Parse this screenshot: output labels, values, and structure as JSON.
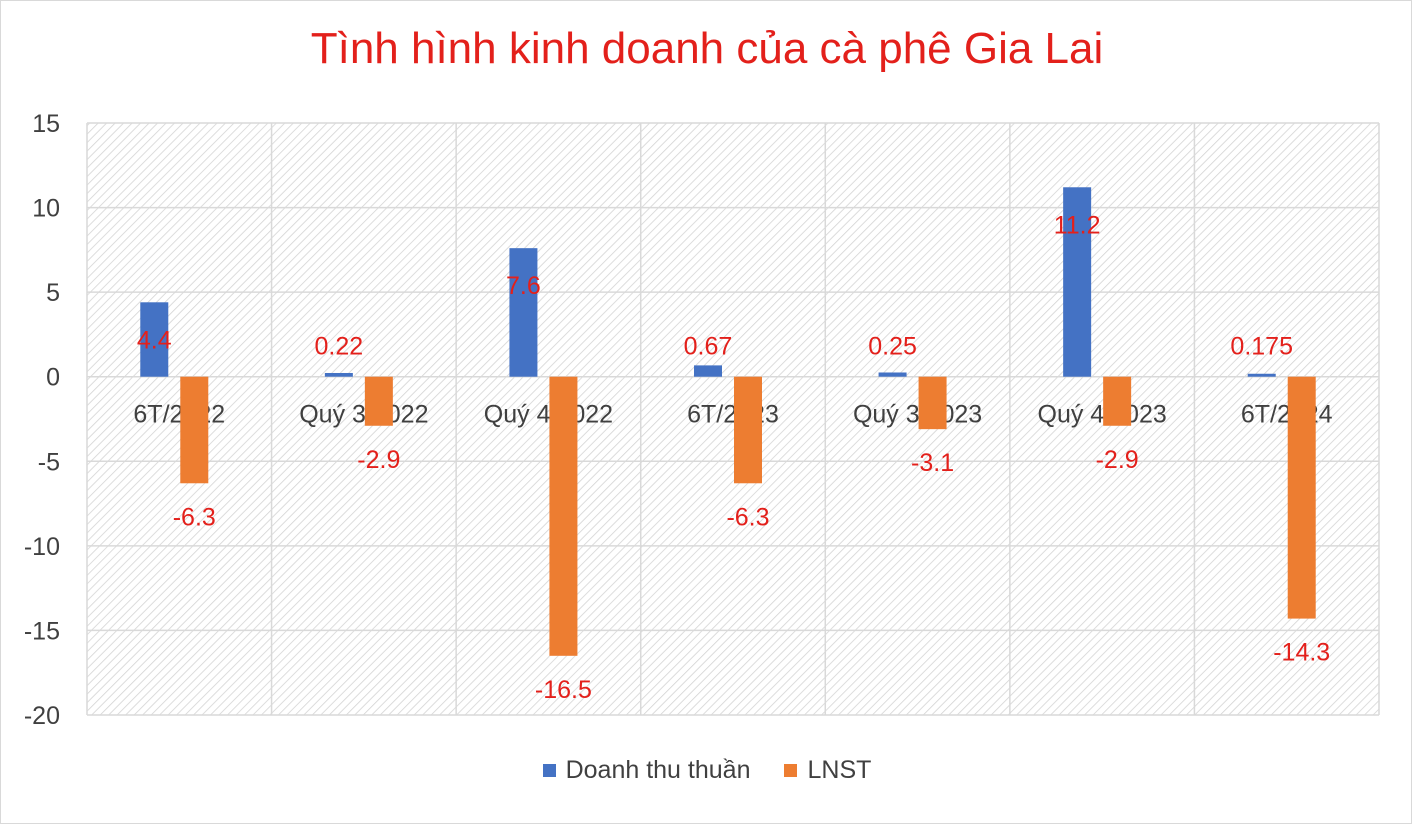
{
  "chart_data": {
    "type": "bar",
    "title": "Tình hình kinh doanh của cà phê Gia Lai",
    "xlabel": "",
    "ylabel": "",
    "ylim": [
      -20,
      15
    ],
    "yticks": [
      15,
      10,
      5,
      0,
      -5,
      -10,
      -15,
      -20
    ],
    "grid": true,
    "legend_position": "bottom",
    "categories": [
      "6T/2022",
      "Quý 3/2022",
      "Quý 4/2022",
      "6T/2023",
      "Quý 3/2023",
      "Quý 4/2023",
      "6T/2024"
    ],
    "series": [
      {
        "name": "Doanh thu thuần",
        "color": "#4472c4",
        "values": [
          4.4,
          0.22,
          7.6,
          0.67,
          0.25,
          11.2,
          0.175
        ],
        "labels": [
          "4.4",
          "0.22",
          "7.6",
          "0.67",
          "0.25",
          "11.2",
          "0.175"
        ]
      },
      {
        "name": "LNST",
        "color": "#ed7d31",
        "values": [
          -6.3,
          -2.9,
          -16.5,
          -6.3,
          -3.1,
          -2.9,
          -14.3
        ],
        "labels": [
          "-6.3",
          "-2.9",
          "-16.5",
          "-6.3",
          "-3.1",
          "-2.9",
          "-14.3"
        ]
      }
    ],
    "label_color": "#e3201b"
  }
}
